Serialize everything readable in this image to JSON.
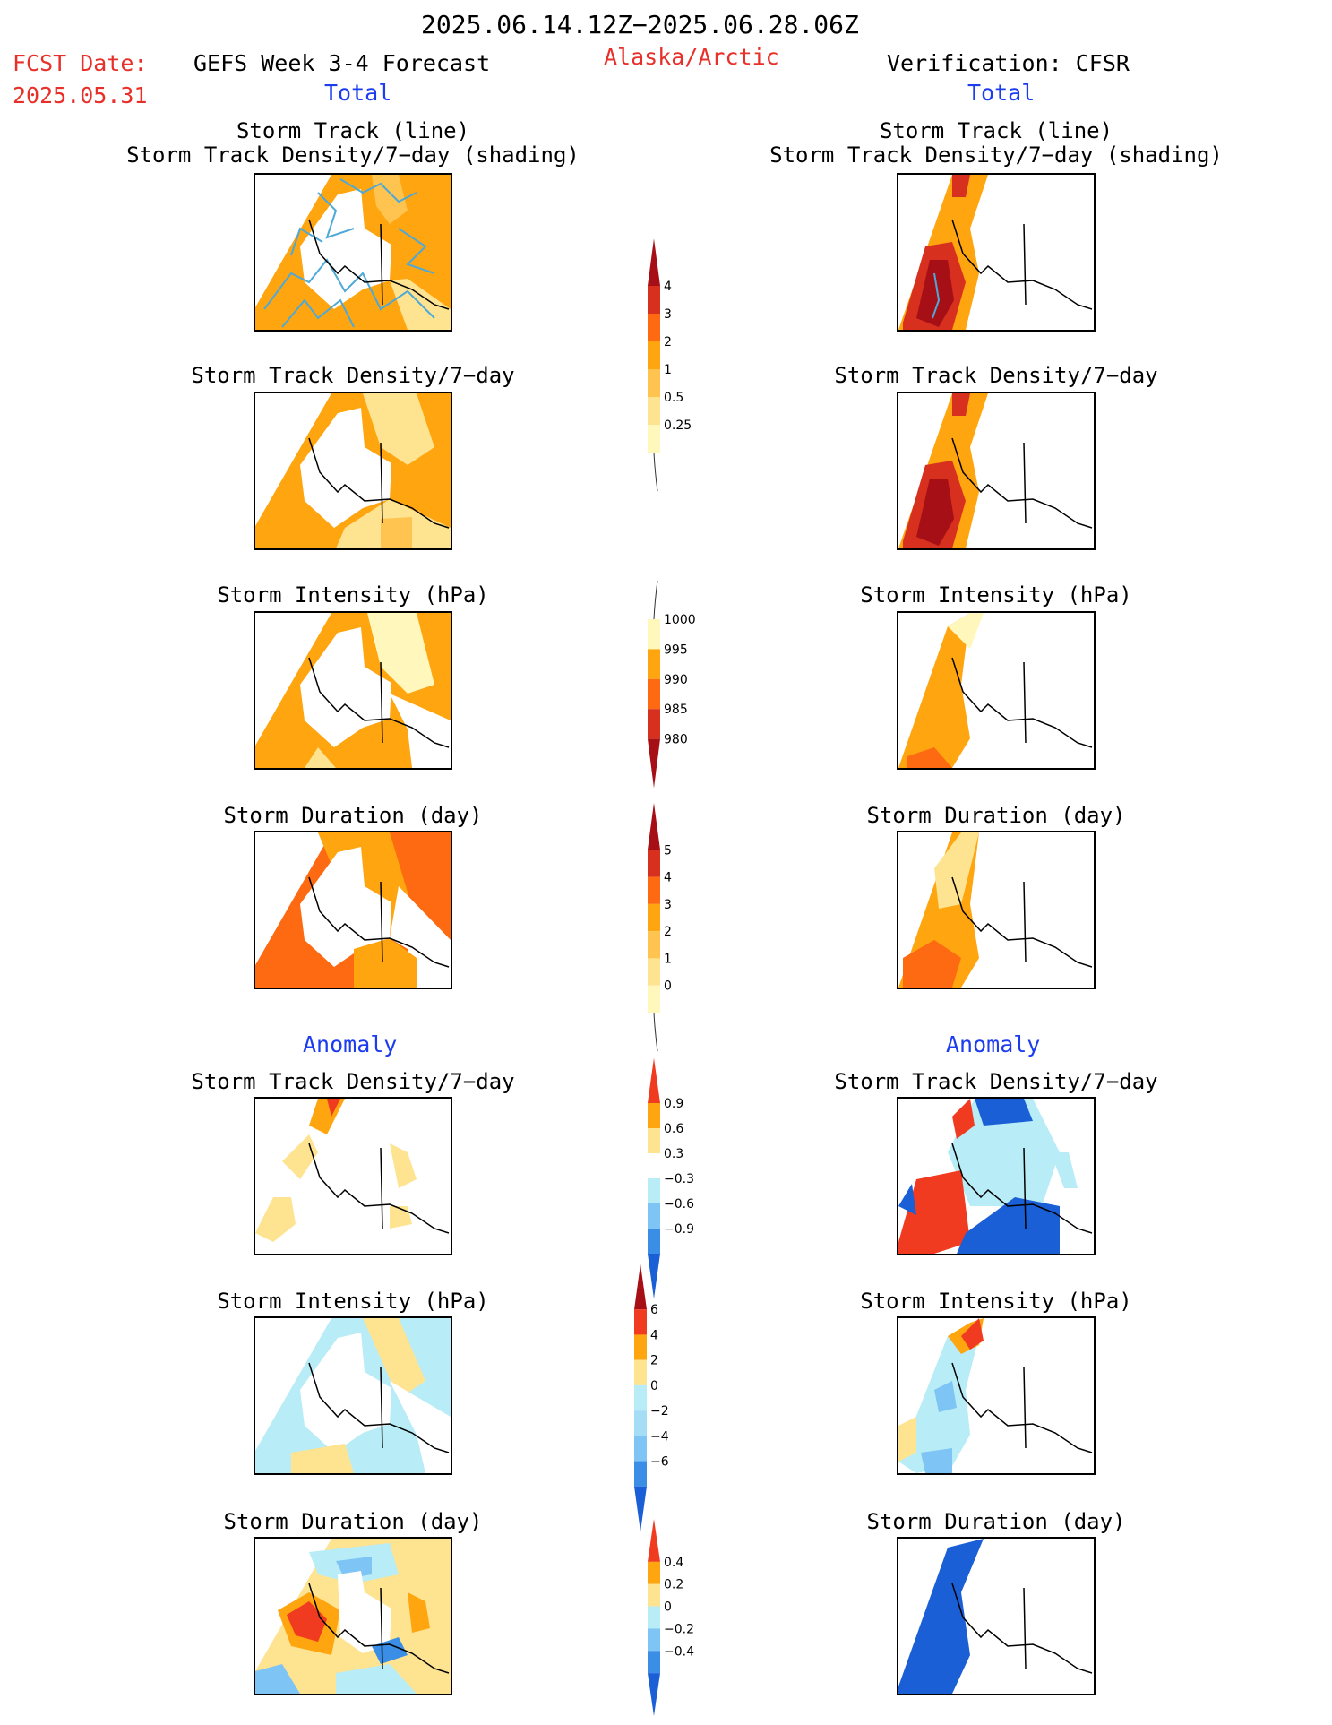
{
  "header": {
    "date_range": "2025.06.14.12Z−2025.06.28.06Z",
    "fcst_label": "FCST Date:",
    "fcst_date": "2025.05.31",
    "forecast_title": "GEFS Week 3-4 Forecast",
    "region": "Alaska/Arctic",
    "verification": "Verification: CFSR"
  },
  "sections": {
    "total_left": "Total",
    "total_right": "Total",
    "anomaly_left": "Anomaly",
    "anomaly_right": "Anomaly"
  },
  "panels": {
    "left": [
      {
        "title1": "Storm Track (line)",
        "title2": "Storm Track Density/7−day (shading)"
      },
      {
        "title1": "Storm Track Density/7−day"
      },
      {
        "title1": "Storm Intensity (hPa)"
      },
      {
        "title1": "Storm Duration (day)"
      },
      {
        "title1": "Storm Track Density/7−day"
      },
      {
        "title1": "Storm Intensity (hPa)"
      },
      {
        "title1": "Storm Duration (day)"
      }
    ],
    "right": [
      {
        "title1": "Storm Track (line)",
        "title2": "Storm Track Density/7−day (shading)"
      },
      {
        "title1": "Storm Track Density/7−day"
      },
      {
        "title1": "Storm Intensity (hPa)"
      },
      {
        "title1": "Storm Duration (day)"
      },
      {
        "title1": "Storm Track Density/7−day"
      },
      {
        "title1": "Storm Intensity (hPa)"
      },
      {
        "title1": "Storm Duration (day)"
      }
    ]
  },
  "colorbars": [
    {
      "id": "density_total",
      "labels": [
        "4",
        "3",
        "2",
        "1",
        "0.5",
        "0.25"
      ],
      "colors": [
        "#a50f15",
        "#d7301f",
        "#fd6a12",
        "#fea50f",
        "#fec44f",
        "#fee391",
        "#fff7bc"
      ],
      "tail": "bottom"
    },
    {
      "id": "intensity_total",
      "labels": [
        "1000",
        "995",
        "990",
        "985",
        "980"
      ],
      "colors": [
        "#fff7bc",
        "#fea50f",
        "#fd6a12",
        "#d7301f",
        "#a50f15"
      ],
      "tail": "top"
    },
    {
      "id": "duration_total",
      "labels": [
        "5",
        "4",
        "3",
        "2",
        "1",
        "0"
      ],
      "colors": [
        "#a50f15",
        "#d7301f",
        "#fd6a12",
        "#fea50f",
        "#fec44f",
        "#fee391",
        "#fff7bc"
      ],
      "tail": "bottom"
    },
    {
      "id": "density_anom",
      "labels": [
        "0.9",
        "0.6",
        "0.3",
        "−0.3",
        "−0.6",
        "−0.9"
      ],
      "colors": [
        "#f03b20",
        "#fea50f",
        "#fee391",
        "#ffffff",
        "#b8ecf6",
        "#7ec4f5",
        "#3a8ee6",
        "#1a5fd6"
      ]
    },
    {
      "id": "intensity_anom",
      "labels": [
        "6",
        "4",
        "2",
        "0",
        "−2",
        "−4",
        "−6"
      ],
      "colors": [
        "#a50f15",
        "#f03b20",
        "#fea50f",
        "#fee391",
        "#b8ecf6",
        "#a6ddf6",
        "#7ec4f5",
        "#3a8ee6",
        "#1a5fd6"
      ]
    },
    {
      "id": "duration_anom",
      "labels": [
        "0.4",
        "0.2",
        "0",
        "−0.2",
        "−0.4"
      ],
      "colors": [
        "#f03b20",
        "#fea50f",
        "#fee391",
        "#b8ecf6",
        "#7ec4f5",
        "#3a8ee6",
        "#1a5fd6"
      ]
    }
  ],
  "colors": {
    "orange": "#fea50f",
    "light_orange": "#fec44f",
    "pale_yellow": "#fee391",
    "dark_orange": "#fd6a12",
    "red": "#d7301f",
    "dark_red": "#a50f15",
    "light_blue": "#b8ecf6",
    "mid_blue": "#7ec4f5",
    "deep_blue": "#1a5fd6",
    "track_line": "#4ea8d8"
  }
}
